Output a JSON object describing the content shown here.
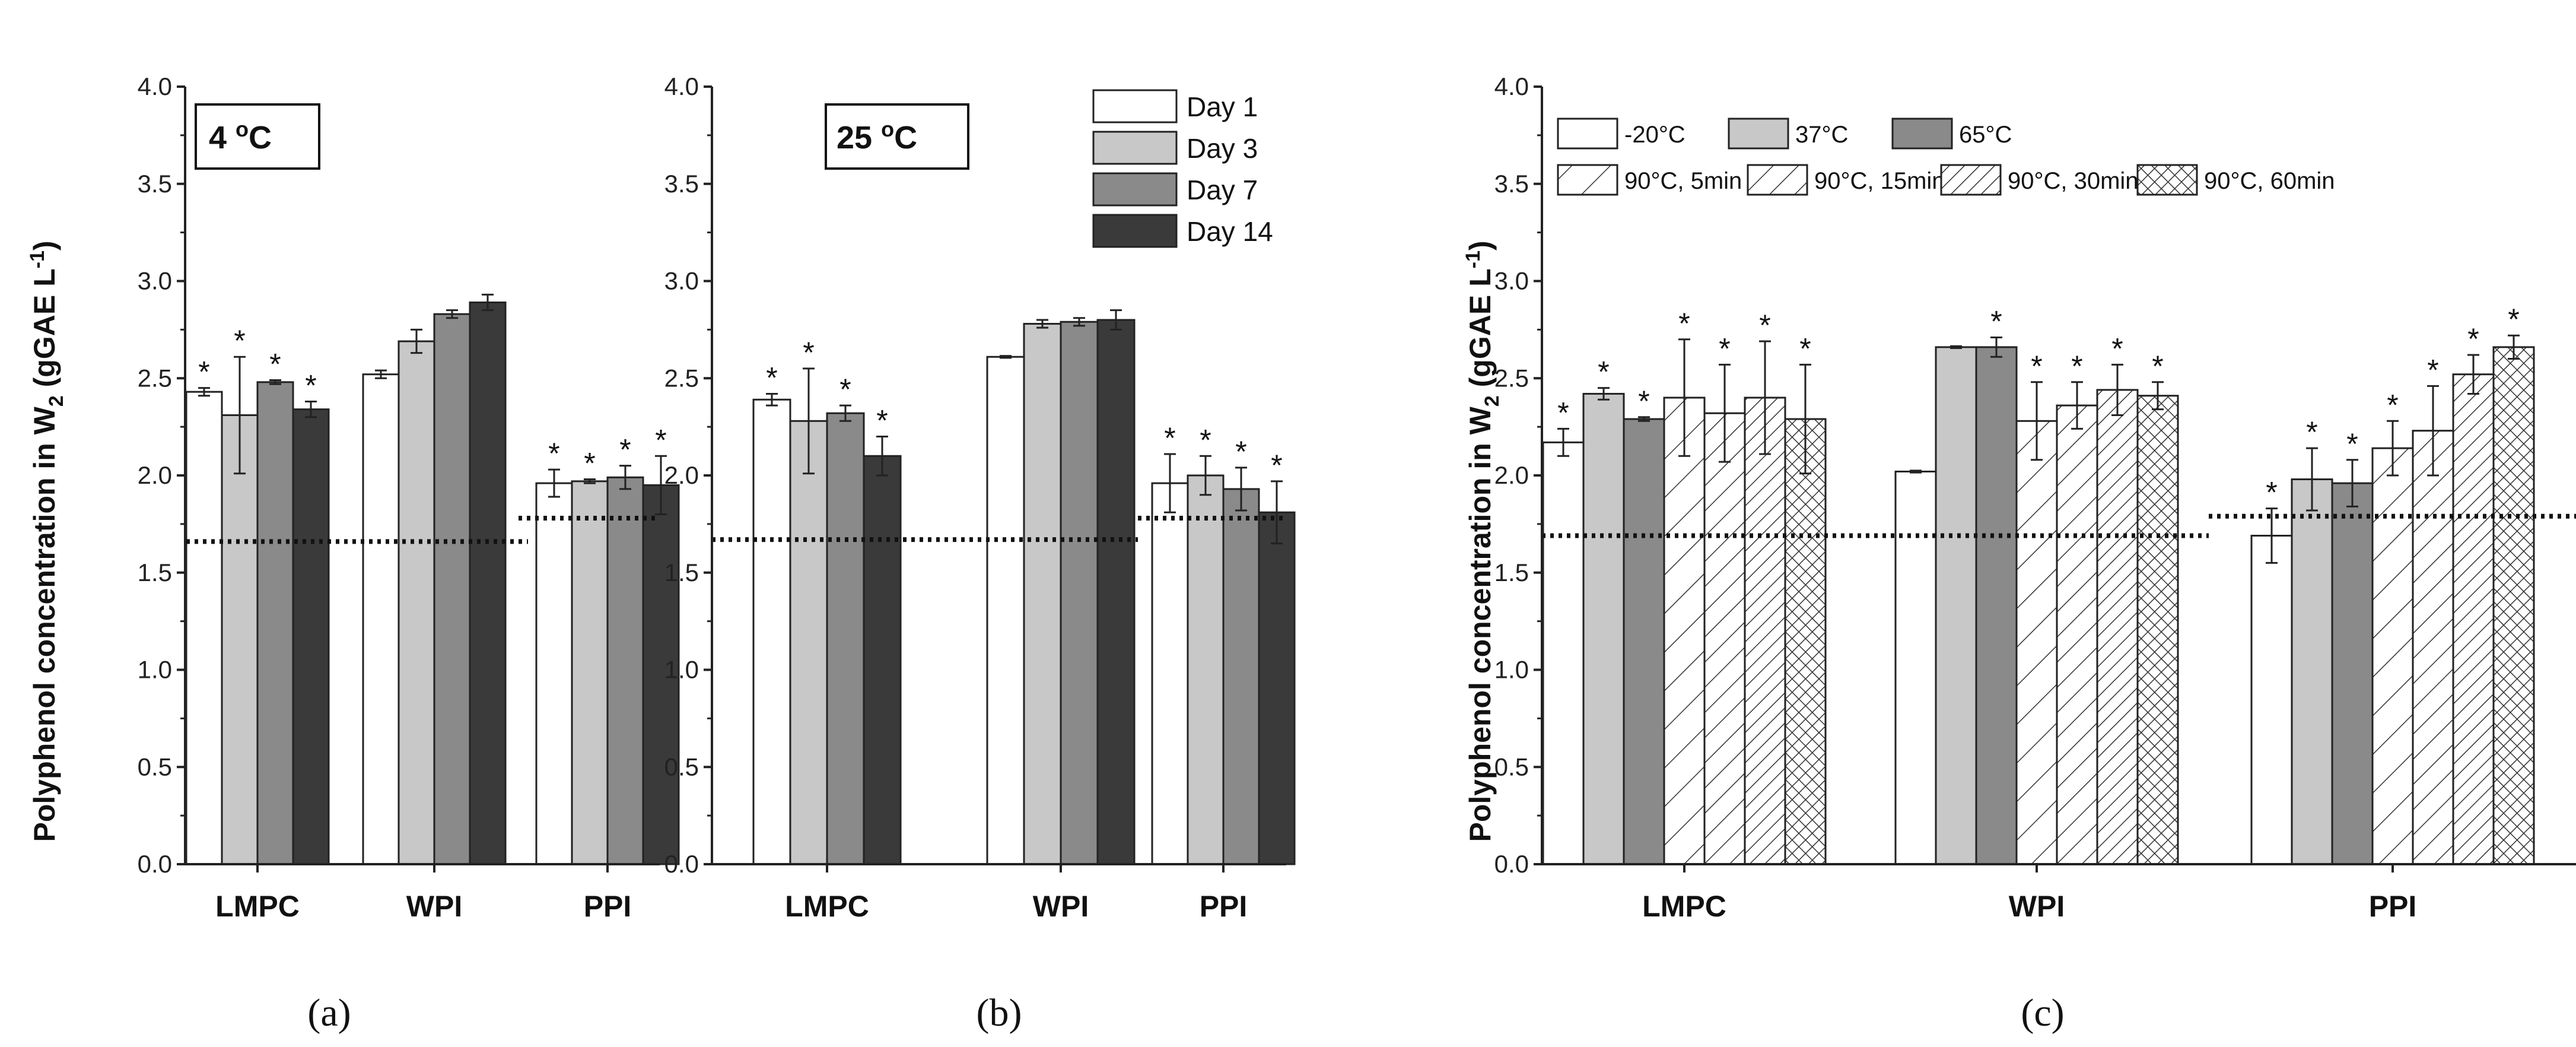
{
  "chart_data": [
    {
      "panel_label": "(a)",
      "type": "bar",
      "title": "4 °C",
      "title_main": "4 ",
      "title_sup": "o",
      "title_unit": "C",
      "ylabel": "Polyphenol concentration in W",
      "ylabel_sub": "2",
      "ylabel_units": " (gGAE L",
      "ylabel_sup": "-1",
      "ylabel_close": ")",
      "ylim": [
        0,
        4.0
      ],
      "yticks": [
        "0.0",
        "0.5",
        "1.0",
        "1.5",
        "2.0",
        "2.5",
        "3.0",
        "3.5",
        "4.0"
      ],
      "categories": [
        "LMPC",
        "WPI",
        "PPI"
      ],
      "series": [
        {
          "name": "Day 1",
          "values": [
            2.43,
            2.52,
            1.96
          ],
          "errors": [
            0.02,
            0.02,
            0.07
          ],
          "star": [
            true,
            false,
            true
          ]
        },
        {
          "name": "Day 3",
          "values": [
            2.31,
            2.69,
            1.97
          ],
          "errors": [
            0.3,
            0.06,
            0.01
          ],
          "star": [
            true,
            false,
            true
          ]
        },
        {
          "name": "Day 7",
          "values": [
            2.48,
            2.83,
            1.99
          ],
          "errors": [
            0.01,
            0.02,
            0.06
          ],
          "star": [
            true,
            false,
            true
          ]
        },
        {
          "name": "Day 14",
          "values": [
            2.34,
            2.89,
            1.95
          ],
          "errors": [
            0.04,
            0.04,
            0.15
          ],
          "star": [
            true,
            false,
            true
          ]
        }
      ],
      "reference_lines": [
        {
          "value": 1.66,
          "span": "LMPC-WPI"
        },
        {
          "value": 1.78,
          "span": "PPI"
        }
      ]
    },
    {
      "panel_label": "(b)",
      "type": "bar",
      "title": "25 °C",
      "title_main": "25 ",
      "title_sup": "o",
      "title_unit": "C",
      "ylim": [
        0,
        4.0
      ],
      "yticks": [
        "0.0",
        "0.5",
        "1.0",
        "1.5",
        "2.0",
        "2.5",
        "3.0",
        "3.5",
        "4.0"
      ],
      "categories": [
        "LMPC",
        "WPI",
        "PPI"
      ],
      "legend_position": "top-right",
      "series": [
        {
          "name": "Day 1",
          "values": [
            2.39,
            2.61,
            1.96
          ],
          "errors": [
            0.03,
            0.005,
            0.15
          ],
          "star": [
            true,
            false,
            true
          ]
        },
        {
          "name": "Day 3",
          "values": [
            2.28,
            2.78,
            2.0
          ],
          "errors": [
            0.27,
            0.02,
            0.1
          ],
          "star": [
            true,
            false,
            true
          ]
        },
        {
          "name": "Day 7",
          "values": [
            2.32,
            2.79,
            1.93
          ],
          "errors": [
            0.04,
            0.02,
            0.11
          ],
          "star": [
            true,
            false,
            true
          ]
        },
        {
          "name": "Day 14",
          "values": [
            2.1,
            2.8,
            1.81
          ],
          "errors": [
            0.1,
            0.05,
            0.16
          ],
          "star": [
            true,
            false,
            true
          ]
        }
      ],
      "reference_lines": [
        {
          "value": 1.67,
          "span": "LMPC-WPI"
        },
        {
          "value": 1.78,
          "span": "PPI"
        }
      ]
    },
    {
      "panel_label": "(c)",
      "type": "bar",
      "ylabel": "Polyphenol concentration in W",
      "ylabel_sub": "2",
      "ylabel_units": " (gGAE L",
      "ylabel_sup": "-1",
      "ylabel_close": ")",
      "ylim": [
        0,
        4.0
      ],
      "yticks": [
        "0.0",
        "0.5",
        "1.0",
        "1.5",
        "2.0",
        "2.5",
        "3.0",
        "3.5",
        "4.0"
      ],
      "categories": [
        "LMPC",
        "WPI",
        "PPI"
      ],
      "legend_position": "top",
      "series": [
        {
          "name": "-20°C",
          "values": [
            2.17,
            2.02,
            1.69
          ],
          "errors": [
            0.07,
            0.005,
            0.14
          ],
          "star": [
            true,
            false,
            true
          ]
        },
        {
          "name": "37°C",
          "values": [
            2.42,
            2.66,
            1.98
          ],
          "errors": [
            0.03,
            0.005,
            0.16
          ],
          "star": [
            true,
            false,
            true
          ]
        },
        {
          "name": "65°C",
          "values": [
            2.29,
            2.66,
            1.96
          ],
          "errors": [
            0.01,
            0.05,
            0.12
          ],
          "star": [
            true,
            true,
            true
          ]
        },
        {
          "name": "90°C, 5min",
          "values": [
            2.4,
            2.28,
            2.14
          ],
          "errors": [
            0.3,
            0.2,
            0.14
          ],
          "star": [
            true,
            true,
            true
          ]
        },
        {
          "name": "90°C, 15min",
          "values": [
            2.32,
            2.36,
            2.23
          ],
          "errors": [
            0.25,
            0.12,
            0.23
          ],
          "star": [
            true,
            true,
            true
          ]
        },
        {
          "name": "90°C, 30min",
          "values": [
            2.4,
            2.44,
            2.52
          ],
          "errors": [
            0.29,
            0.13,
            0.1
          ],
          "star": [
            true,
            true,
            true
          ]
        },
        {
          "name": "90°C, 60min",
          "values": [
            2.29,
            2.41,
            2.66
          ],
          "errors": [
            0.28,
            0.07,
            0.06
          ],
          "star": [
            true,
            true,
            true
          ]
        }
      ],
      "reference_lines": [
        {
          "value": 1.69,
          "span": "LMPC-WPI"
        },
        {
          "value": 1.79,
          "span": "PPI"
        }
      ]
    }
  ],
  "marker": "*",
  "colors": {
    "day1": "#ffffff",
    "day3": "#c8c8c8",
    "day7": "#8a8a8a",
    "day14": "#3a3a3a",
    "axis": "#222222"
  }
}
